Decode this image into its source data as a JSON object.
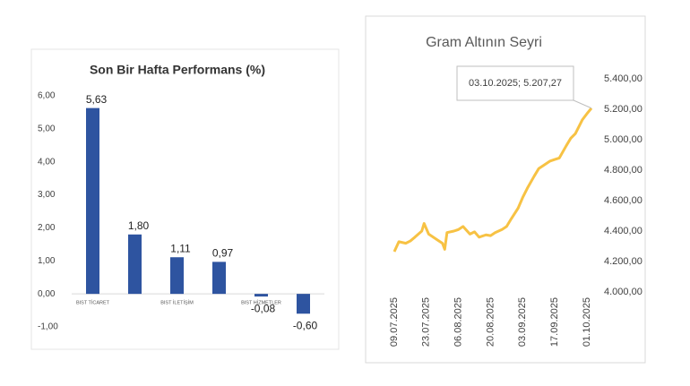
{
  "chart_data": [
    {
      "type": "bar",
      "title": "Son Bir Hafta Performans (%)",
      "categories": [
        "BIST TİCARET",
        null,
        "BIST İLETİŞİM",
        null,
        "BIST HİZMETLER",
        null
      ],
      "values": [
        5.63,
        1.8,
        1.11,
        0.97,
        -0.08,
        -0.6
      ],
      "value_labels": [
        "5,63",
        "1,80",
        "1,11",
        "0,97",
        "-0,08",
        "-0,60"
      ],
      "color": "#2e54a0",
      "ylim": [
        -1,
        6
      ],
      "yticks": [
        {
          "value": 6,
          "label": "6,00"
        },
        {
          "value": 5,
          "label": "5,00"
        },
        {
          "value": 4,
          "label": "4,00"
        },
        {
          "value": 3,
          "label": "3,00"
        },
        {
          "value": 2,
          "label": "2,00"
        },
        {
          "value": 1,
          "label": "1,00"
        },
        {
          "value": 0,
          "label": "0,00"
        },
        {
          "value": -1,
          "label": "-1,00"
        }
      ]
    },
    {
      "type": "line",
      "title": "Gram Altının Seyri",
      "annotation": "03.10.2025; 5.207,27",
      "x": [
        "09.07.2025",
        "11.07.2025",
        "14.07.2025",
        "16.07.2025",
        "18.07.2025",
        "21.07.2025",
        "22.07.2025",
        "24.07.2025",
        "28.07.2025",
        "30.07.2025",
        "31.07.2025",
        "01.08.2025",
        "04.08.2025",
        "06.08.2025",
        "08.08.2025",
        "11.08.2025",
        "13.08.2025",
        "15.08.2025",
        "18.08.2025",
        "20.08.2025",
        "22.08.2025",
        "25.08.2025",
        "27.08.2025",
        "29.08.2025",
        "01.09.2025",
        "03.09.2025",
        "05.09.2025",
        "08.09.2025",
        "10.09.2025",
        "12.09.2025",
        "15.09.2025",
        "17.09.2025",
        "19.09.2025",
        "22.09.2025",
        "24.09.2025",
        "26.09.2025",
        "29.09.2025",
        "01.10.2025",
        "03.10.2025"
      ],
      "series": [
        {
          "color": "#f7c244",
          "values": [
            4265,
            4330,
            4320,
            4335,
            4360,
            4400,
            4450,
            4380,
            4340,
            4320,
            4280,
            4390,
            4400,
            4410,
            4430,
            4380,
            4395,
            4360,
            4375,
            4370,
            4390,
            4410,
            4430,
            4480,
            4550,
            4620,
            4680,
            4760,
            4810,
            4830,
            4860,
            4870,
            4880,
            4960,
            5010,
            5040,
            5130,
            5170,
            5207.27
          ]
        }
      ],
      "xlim": [
        "09.07.2025",
        "03.10.2025"
      ],
      "xticks": [
        "09.07.2025",
        "23.07.2025",
        "06.08.2025",
        "20.08.2025",
        "03.09.2025",
        "17.09.2025",
        "01.10.2025"
      ],
      "ylim": [
        4000,
        5400
      ],
      "yticks": [
        {
          "value": 4000,
          "label": "4.000,00"
        },
        {
          "value": 4200,
          "label": "4.200,00"
        },
        {
          "value": 4400,
          "label": "4.400,00"
        },
        {
          "value": 4600,
          "label": "4.600,00"
        },
        {
          "value": 4800,
          "label": "4.800,00"
        },
        {
          "value": 5000,
          "label": "5.000,00"
        },
        {
          "value": 5200,
          "label": "5.200,00"
        },
        {
          "value": 5400,
          "label": "5.400,00"
        }
      ]
    }
  ]
}
